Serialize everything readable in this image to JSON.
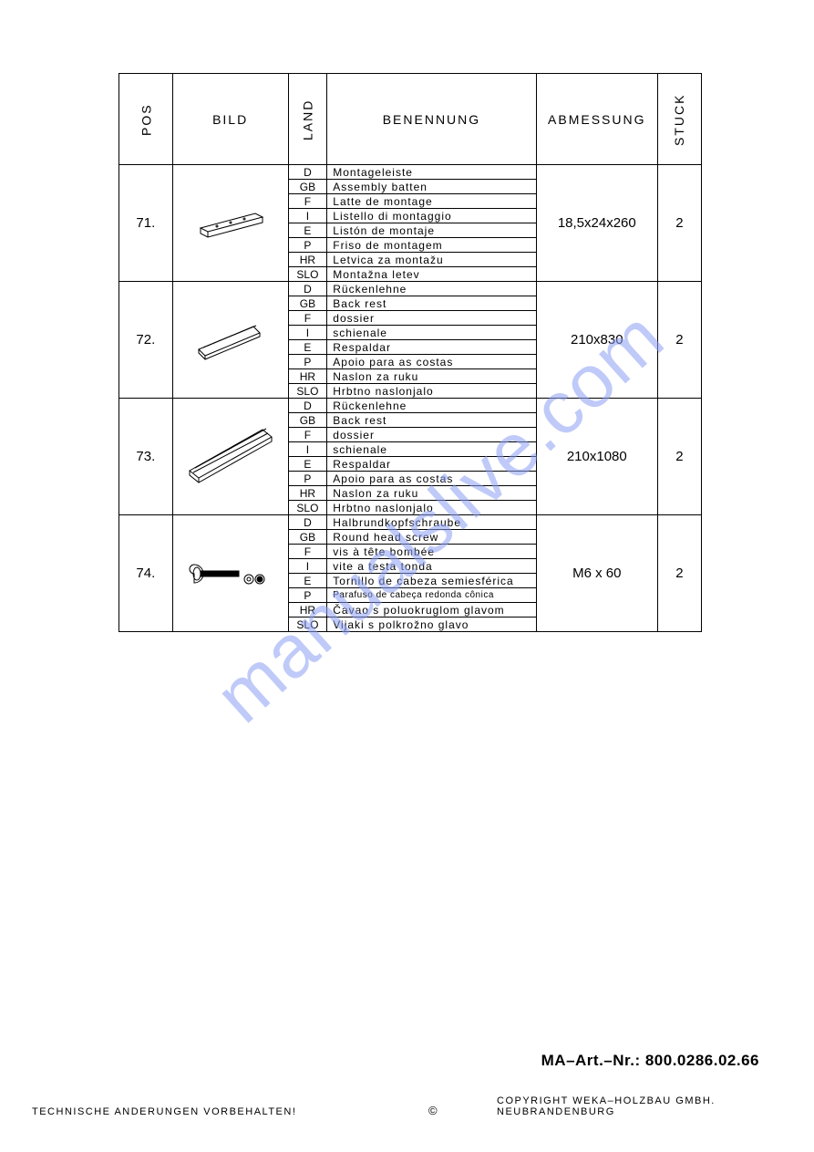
{
  "headers": {
    "pos": "POS",
    "bild": "BILD",
    "land": "LAND",
    "benennung": "BENENNUNG",
    "abmessung": "ABMESSUNG",
    "stuck": "STUCK"
  },
  "rows": [
    {
      "pos": "71.",
      "dim": "18,5x24x260",
      "qty": "2",
      "langs": [
        "D",
        "GB",
        "F",
        "I",
        "E",
        "P",
        "HR",
        "SLO"
      ],
      "descs": [
        "Montageleiste",
        "Assembly batten",
        "Latte de montage",
        "Listello di montaggio",
        "Listón de montaje",
        "Friso de montagem",
        "Letvica za montažu",
        "Montažna letev"
      ],
      "small": [
        false,
        false,
        false,
        false,
        false,
        false,
        false,
        false
      ]
    },
    {
      "pos": "72.",
      "dim": "210x830",
      "qty": "2",
      "langs": [
        "D",
        "GB",
        "F",
        "I",
        "E",
        "P",
        "HR",
        "SLO"
      ],
      "descs": [
        "Rückenlehne",
        "Back rest",
        "dossier",
        "schienale",
        "Respaldar",
        "Apoio para as costas",
        "Naslon za ruku",
        "Hrbtno naslonjalo"
      ],
      "small": [
        false,
        false,
        false,
        false,
        false,
        false,
        false,
        false
      ]
    },
    {
      "pos": "73.",
      "dim": "210x1080",
      "qty": "2",
      "langs": [
        "D",
        "GB",
        "F",
        "I",
        "E",
        "P",
        "HR",
        "SLO"
      ],
      "descs": [
        "Rückenlehne",
        "Back rest",
        "dossier",
        "schienale",
        "Respaldar",
        "Apoio para as costas",
        "Naslon za ruku",
        "Hrbtno naslonjalo"
      ],
      "small": [
        false,
        false,
        false,
        false,
        false,
        false,
        false,
        false
      ]
    },
    {
      "pos": "74.",
      "dim": "M6 x 60",
      "qty": "2",
      "langs": [
        "D",
        "GB",
        "F",
        "I",
        "E",
        "P",
        "HR",
        "SLO"
      ],
      "descs": [
        "Halbrundkopfschraube",
        "Round head screw",
        "vis à tête bombée",
        "vite a testa tonda",
        "Tornillo de cabeza semiesférica",
        "Parafuso de cabeça redonda cônica",
        "Čavao s poluokruglom glavom",
        "Vijaki s polkrožno glavo"
      ],
      "small": [
        false,
        false,
        false,
        false,
        false,
        true,
        false,
        false
      ]
    }
  ],
  "watermark": "manualslive.com",
  "footer": {
    "art_label": "MA–Art.–Nr.:  800.0286.02.66",
    "changes": "TECHNISCHE ANDERUNGEN VORBEHALTEN!",
    "copyright_symbol": "©",
    "copyright": "COPYRIGHT WEKA–HOLZBAU GMBH. NEUBRANDENBURG"
  },
  "svgs": {
    "batten": "<svg width='90' height='50' viewBox='0 0 90 50'><g stroke='#000' stroke-width='1' fill='none'><path d='M12 30 L72 14 L80 18 L20 34 Z'/><path d='M12 30 L12 36 L20 40 L80 24 L80 18'/><path d='M20 34 L20 40'/><circle cx='30' cy='28' r='1'/><circle cx='45' cy='24' r='1'/><circle cx='60' cy='20' r='1'/></g></svg>",
    "backrest_short": "<svg width='100' height='60' viewBox='0 0 100 60'><g stroke='#000' stroke-width='1' fill='none'><path d='M15 40 L75 15 L82 22 L22 47 Z'/><path d='M15 40 L15 44 L22 51 L82 26 L82 22'/><path d='M22 47 L22 51'/><path d='M20 38 L78 14'/></g></svg>",
    "backrest_long": "<svg width='110' height='80' viewBox='0 0 110 80'><g stroke='#000' stroke-width='1' fill='none'><path d='M10 55 L90 10 L100 18 L20 63 Z'/><path d='M10 55 L10 60 L20 68 L100 23 L100 18'/><path d='M20 63 L20 68'/><path d='M16 52 L94 9'/><path d='M14 57 L96 14'/></g></svg>",
    "screw": "<svg width='100' height='30' viewBox='0 0 100 30'><g stroke='#000' stroke-width='1' fill='none'><path d='M10 15 A5 5 0 0 1 10 5 A5 5 0 0 1 10 25 Z' fill='#fff'/><ellipse cx='13' cy='15' rx='4' ry='7'/><rect x='17' y='12' width='42' height='6' fill='#000'/><circle cx='70' cy='21' r='5'/><circle cx='70' cy='21' r='2'/><circle cx='82' cy='21' r='5'/><circle cx='82' cy='21' r='3' fill='#000'/></g></svg>"
  }
}
